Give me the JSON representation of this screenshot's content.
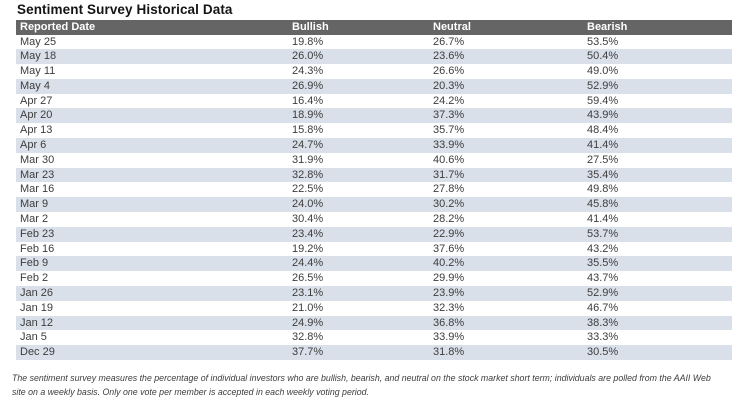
{
  "page_title": "Sentiment Survey Historical Data",
  "colors": {
    "header_bg": "#656565",
    "header_text": "#ffffff",
    "row_bg": "#ffffff",
    "row_alt_bg": "#dae0ea",
    "body_text": "#3d3d3d",
    "title_text": "#141414"
  },
  "table": {
    "columns": [
      "Reported Date",
      "Bullish",
      "Neutral",
      "Bearish"
    ]
  },
  "footnote": "The sentiment survey measures the percentage of individual investors who are bullish, bearish, and neutral on the stock market short term; individuals are polled from the AAII Web site on a weekly basis. Only one vote per member is accepted in each weekly voting period.",
  "chart_data": {
    "type": "table",
    "title": "Sentiment Survey Historical Data",
    "columns": [
      "Reported Date",
      "Bullish",
      "Neutral",
      "Bearish"
    ],
    "rows": [
      {
        "date": "May 25",
        "bullish": "19.8%",
        "neutral": "26.7%",
        "bearish": "53.5%"
      },
      {
        "date": "May 18",
        "bullish": "26.0%",
        "neutral": "23.6%",
        "bearish": "50.4%"
      },
      {
        "date": "May 11",
        "bullish": "24.3%",
        "neutral": "26.6%",
        "bearish": "49.0%"
      },
      {
        "date": "May 4",
        "bullish": "26.9%",
        "neutral": "20.3%",
        "bearish": "52.9%"
      },
      {
        "date": "Apr 27",
        "bullish": "16.4%",
        "neutral": "24.2%",
        "bearish": "59.4%"
      },
      {
        "date": "Apr 20",
        "bullish": "18.9%",
        "neutral": "37.3%",
        "bearish": "43.9%"
      },
      {
        "date": "Apr 13",
        "bullish": "15.8%",
        "neutral": "35.7%",
        "bearish": "48.4%"
      },
      {
        "date": "Apr 6",
        "bullish": "24.7%",
        "neutral": "33.9%",
        "bearish": "41.4%"
      },
      {
        "date": "Mar 30",
        "bullish": "31.9%",
        "neutral": "40.6%",
        "bearish": "27.5%"
      },
      {
        "date": "Mar 23",
        "bullish": "32.8%",
        "neutral": "31.7%",
        "bearish": "35.4%"
      },
      {
        "date": "Mar 16",
        "bullish": "22.5%",
        "neutral": "27.8%",
        "bearish": "49.8%"
      },
      {
        "date": "Mar 9",
        "bullish": "24.0%",
        "neutral": "30.2%",
        "bearish": "45.8%"
      },
      {
        "date": "Mar 2",
        "bullish": "30.4%",
        "neutral": "28.2%",
        "bearish": "41.4%"
      },
      {
        "date": "Feb 23",
        "bullish": "23.4%",
        "neutral": "22.9%",
        "bearish": "53.7%"
      },
      {
        "date": "Feb 16",
        "bullish": "19.2%",
        "neutral": "37.6%",
        "bearish": "43.2%"
      },
      {
        "date": "Feb 9",
        "bullish": "24.4%",
        "neutral": "40.2%",
        "bearish": "35.5%"
      },
      {
        "date": "Feb 2",
        "bullish": "26.5%",
        "neutral": "29.9%",
        "bearish": "43.7%"
      },
      {
        "date": "Jan 26",
        "bullish": "23.1%",
        "neutral": "23.9%",
        "bearish": "52.9%"
      },
      {
        "date": "Jan 19",
        "bullish": "21.0%",
        "neutral": "32.3%",
        "bearish": "46.7%"
      },
      {
        "date": "Jan 12",
        "bullish": "24.9%",
        "neutral": "36.8%",
        "bearish": "38.3%"
      },
      {
        "date": "Jan 5",
        "bullish": "32.8%",
        "neutral": "33.9%",
        "bearish": "33.3%"
      },
      {
        "date": "Dec 29",
        "bullish": "37.7%",
        "neutral": "31.8%",
        "bearish": "30.5%"
      }
    ]
  }
}
